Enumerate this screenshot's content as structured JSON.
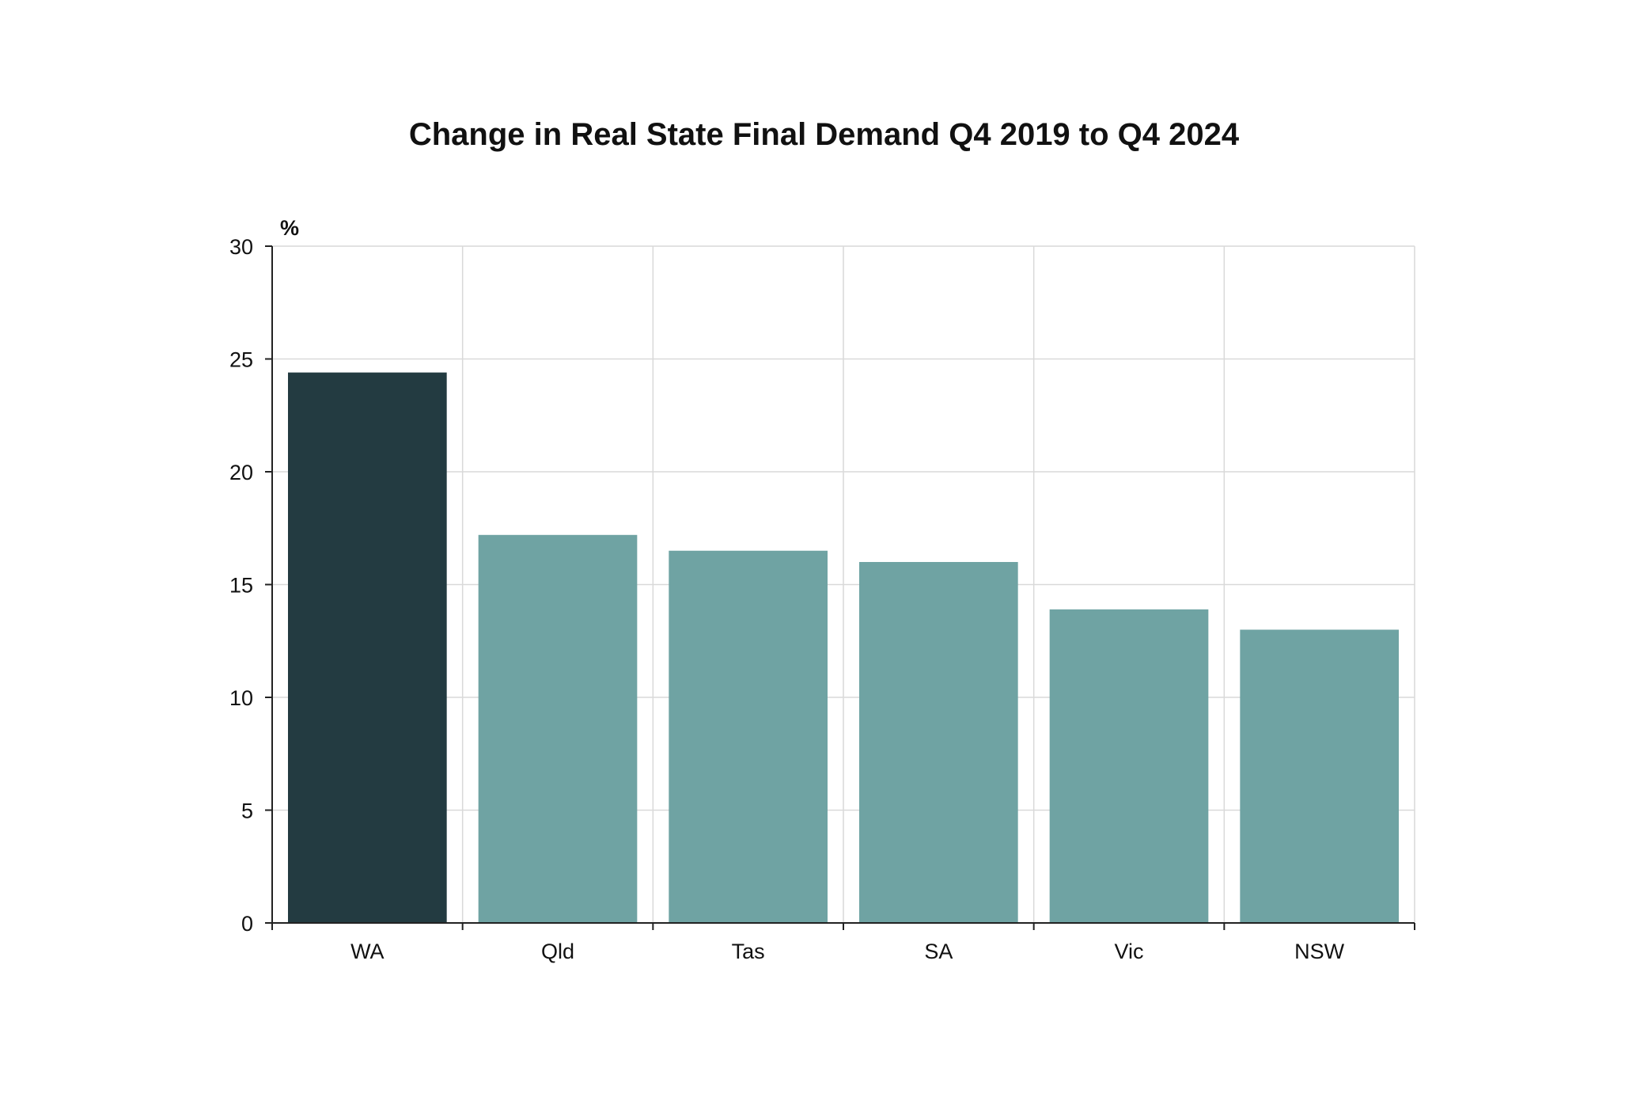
{
  "chart_data": {
    "type": "bar",
    "title": "Change in Real State Final Demand Q4 2019 to Q4 2024",
    "ylabel": "%",
    "xlabel": "",
    "categories": [
      "WA",
      "Qld",
      "Tas",
      "SA",
      "Vic",
      "NSW"
    ],
    "values": [
      24.4,
      17.2,
      16.5,
      16.0,
      13.9,
      13.0
    ],
    "highlight_index": 0,
    "ylim": [
      0,
      30
    ],
    "yticks": [
      0,
      5,
      10,
      15,
      20,
      25,
      30
    ],
    "grid": true,
    "legend": "none",
    "colors": {
      "highlight": "#233b41",
      "bar": "#6fa3a3",
      "grid": "#d9d9d9",
      "axis": "#222222"
    }
  }
}
